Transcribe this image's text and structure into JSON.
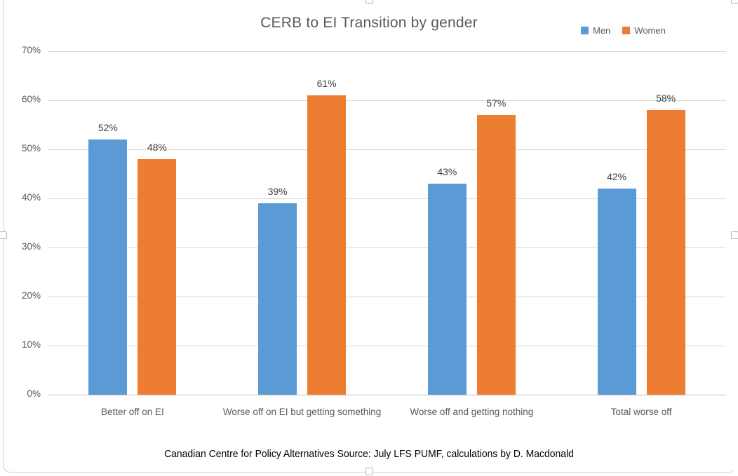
{
  "chart_data": {
    "type": "bar",
    "title": "CERB to EI Transition by gender",
    "categories": [
      "Better off on EI",
      "Worse off on EI but getting something",
      "Worse off and getting nothing",
      "Total worse off"
    ],
    "series": [
      {
        "name": "Men",
        "color": "#5B9BD5",
        "values": [
          52,
          39,
          43,
          42
        ]
      },
      {
        "name": "Women",
        "color": "#ED7D31",
        "values": [
          48,
          61,
          57,
          58
        ]
      }
    ],
    "value_format": "percent",
    "data_labels_shown": true,
    "y_axis": {
      "min": 0,
      "max": 70,
      "step": 10,
      "tick_labels": [
        "0%",
        "10%",
        "20%",
        "30%",
        "40%",
        "50%",
        "60%",
        "70%"
      ]
    },
    "legend": {
      "position": "top-right",
      "entries": [
        "Men",
        "Women"
      ]
    },
    "grid": true
  },
  "footer": {
    "text": "Canadian Centre for Policy Alternatives Source: July LFS PUMF, calculations by D. Macdonald"
  },
  "colors": {
    "men": "#5B9BD5",
    "women": "#ED7D31",
    "gridline": "#D9D9D9",
    "axis_line": "#BFBFBF",
    "title_text": "#595959",
    "tick_text": "#595959",
    "category_text": "#595959",
    "data_label_text": "#404040",
    "frame": "#CFCFCF"
  }
}
